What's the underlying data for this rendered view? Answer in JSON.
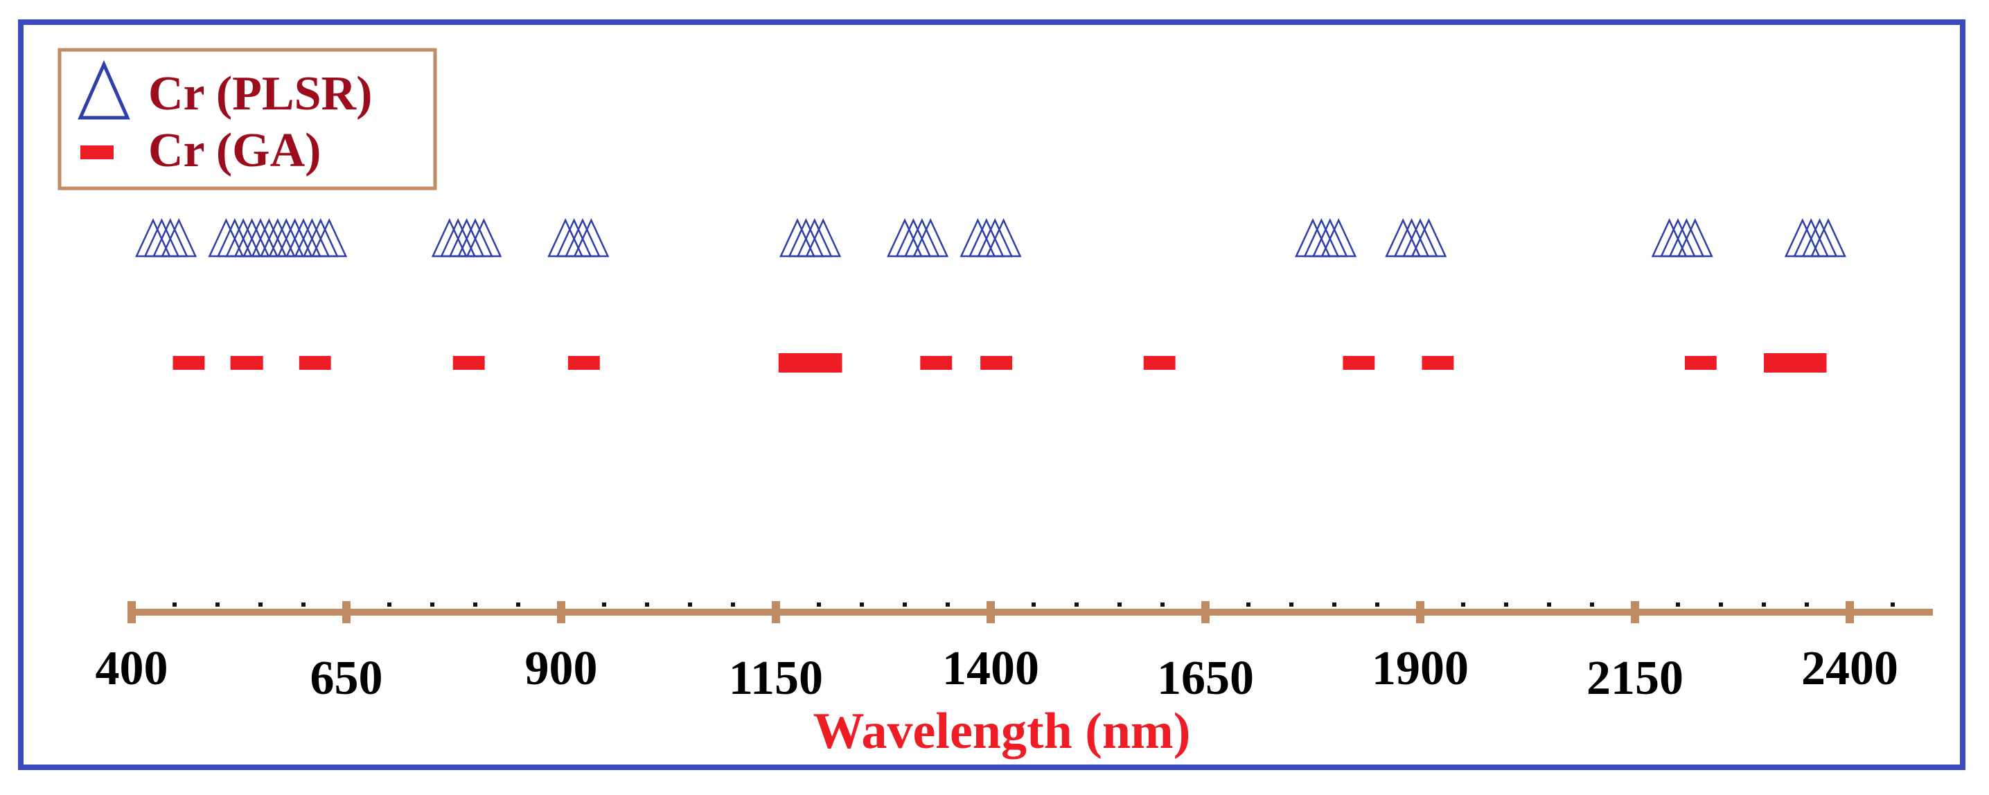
{
  "chart_data": {
    "type": "scatter",
    "title": "",
    "xlabel": "Wavelength (nm)",
    "ylabel": "",
    "xlim": [
      400,
      2500
    ],
    "xticks_major": [
      400,
      650,
      900,
      1150,
      1400,
      1650,
      1900,
      2150,
      2400
    ],
    "tick_labels": [
      "400",
      "650",
      "900",
      "1150",
      "1400",
      "1650",
      "1900",
      "2150",
      "2400"
    ],
    "minor_tick_step": 50,
    "legend_position": "top-left",
    "series": [
      {
        "name": "Cr (PLSR)",
        "marker": "triangle-open",
        "color": "#2f3fa8",
        "x": [
          425,
          435,
          445,
          455,
          510,
          520,
          530,
          540,
          550,
          560,
          570,
          580,
          590,
          600,
          610,
          620,
          630,
          770,
          780,
          790,
          800,
          810,
          905,
          915,
          925,
          935,
          1175,
          1185,
          1195,
          1205,
          1300,
          1310,
          1320,
          1330,
          1385,
          1395,
          1405,
          1415,
          1775,
          1785,
          1795,
          1805,
          1880,
          1890,
          1900,
          1910,
          2190,
          2200,
          2210,
          2220,
          2345,
          2355,
          2365,
          2375
        ]
      },
      {
        "name": "Cr (GA)",
        "marker": "bar",
        "color": "#ee1c25",
        "segments": [
          {
            "start": 448,
            "end": 485
          },
          {
            "start": 515,
            "end": 553
          },
          {
            "start": 595,
            "end": 632
          },
          {
            "start": 774,
            "end": 811
          },
          {
            "start": 908,
            "end": 945
          },
          {
            "start": 1153,
            "end": 1227
          },
          {
            "start": 1318,
            "end": 1355
          },
          {
            "start": 1388,
            "end": 1425
          },
          {
            "start": 1578,
            "end": 1615
          },
          {
            "start": 1810,
            "end": 1847
          },
          {
            "start": 1902,
            "end": 1939
          },
          {
            "start": 2208,
            "end": 2245
          },
          {
            "start": 2300,
            "end": 2373
          }
        ]
      }
    ]
  },
  "legend": {
    "plsr_label": "Cr (PLSR)",
    "ga_label": "Cr (GA)"
  }
}
